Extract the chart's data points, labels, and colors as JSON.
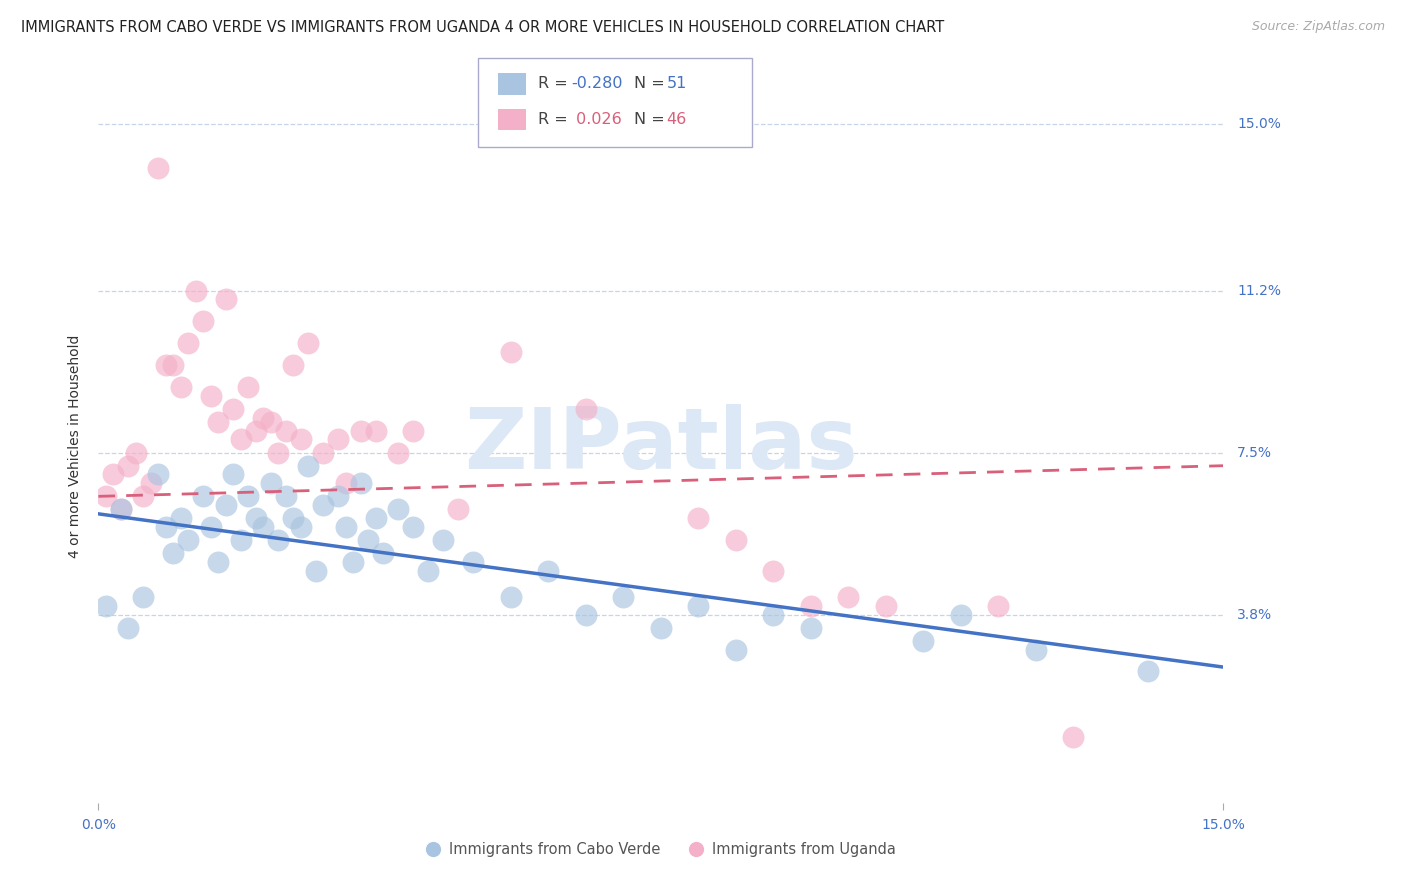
{
  "title": "IMMIGRANTS FROM CABO VERDE VS IMMIGRANTS FROM UGANDA 4 OR MORE VEHICLES IN HOUSEHOLD CORRELATION CHART",
  "source": "Source: ZipAtlas.com",
  "ylabel": "4 or more Vehicles in Household",
  "y_tick_positions": [
    0.038,
    0.075,
    0.112,
    0.15
  ],
  "y_tick_labels": [
    "3.8%",
    "7.5%",
    "11.2%",
    "15.0%"
  ],
  "x_range": [
    0.0,
    0.15
  ],
  "y_range": [
    -0.005,
    0.158
  ],
  "cabo_verde_R": -0.28,
  "cabo_verde_N": 51,
  "uganda_R": 0.026,
  "uganda_N": 46,
  "cabo_verde_scatter_color": "#a8c4e0",
  "uganda_scatter_color": "#f4b0c8",
  "cabo_verde_line_color": "#4472c4",
  "uganda_line_color": "#d9607a",
  "watermark_color": "#dce8f5",
  "background_color": "#ffffff",
  "grid_color": "#c8d4e8",
  "cabo_verde_line_start_y": 0.061,
  "cabo_verde_line_end_y": 0.026,
  "uganda_line_start_y": 0.065,
  "uganda_line_end_y": 0.072,
  "cabo_verde_x": [
    0.001,
    0.003,
    0.004,
    0.006,
    0.008,
    0.009,
    0.01,
    0.011,
    0.012,
    0.014,
    0.015,
    0.016,
    0.017,
    0.018,
    0.019,
    0.02,
    0.021,
    0.022,
    0.023,
    0.024,
    0.025,
    0.026,
    0.027,
    0.028,
    0.029,
    0.03,
    0.032,
    0.033,
    0.034,
    0.035,
    0.036,
    0.037,
    0.038,
    0.04,
    0.042,
    0.044,
    0.046,
    0.05,
    0.055,
    0.06,
    0.065,
    0.07,
    0.075,
    0.08,
    0.085,
    0.09,
    0.095,
    0.11,
    0.115,
    0.125,
    0.14
  ],
  "cabo_verde_y": [
    0.04,
    0.062,
    0.035,
    0.042,
    0.07,
    0.058,
    0.052,
    0.06,
    0.055,
    0.065,
    0.058,
    0.05,
    0.063,
    0.07,
    0.055,
    0.065,
    0.06,
    0.058,
    0.068,
    0.055,
    0.065,
    0.06,
    0.058,
    0.072,
    0.048,
    0.063,
    0.065,
    0.058,
    0.05,
    0.068,
    0.055,
    0.06,
    0.052,
    0.062,
    0.058,
    0.048,
    0.055,
    0.05,
    0.042,
    0.048,
    0.038,
    0.042,
    0.035,
    0.04,
    0.03,
    0.038,
    0.035,
    0.032,
    0.038,
    0.03,
    0.025
  ],
  "uganda_x": [
    0.001,
    0.002,
    0.003,
    0.004,
    0.005,
    0.006,
    0.007,
    0.008,
    0.009,
    0.01,
    0.011,
    0.012,
    0.013,
    0.014,
    0.015,
    0.016,
    0.017,
    0.018,
    0.019,
    0.02,
    0.021,
    0.022,
    0.023,
    0.024,
    0.025,
    0.026,
    0.027,
    0.028,
    0.03,
    0.032,
    0.033,
    0.035,
    0.037,
    0.04,
    0.042,
    0.048,
    0.055,
    0.065,
    0.08,
    0.085,
    0.09,
    0.095,
    0.1,
    0.105,
    0.12,
    0.13
  ],
  "uganda_y": [
    0.065,
    0.07,
    0.062,
    0.072,
    0.075,
    0.065,
    0.068,
    0.14,
    0.095,
    0.095,
    0.09,
    0.1,
    0.112,
    0.105,
    0.088,
    0.082,
    0.11,
    0.085,
    0.078,
    0.09,
    0.08,
    0.083,
    0.082,
    0.075,
    0.08,
    0.095,
    0.078,
    0.1,
    0.075,
    0.078,
    0.068,
    0.08,
    0.08,
    0.075,
    0.08,
    0.062,
    0.098,
    0.085,
    0.06,
    0.055,
    0.048,
    0.04,
    0.042,
    0.04,
    0.04,
    0.01
  ]
}
